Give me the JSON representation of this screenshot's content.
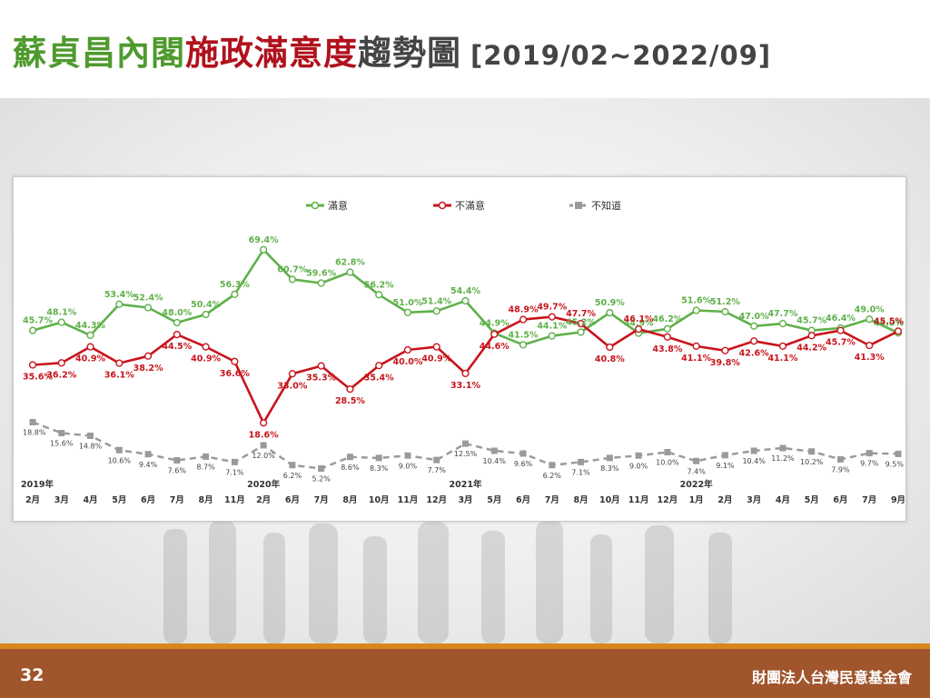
{
  "title": {
    "part1": "蘇貞昌內閣",
    "part2": "施政滿意度",
    "part3": "趨勢圖",
    "period": "[2019/02~2022/09]"
  },
  "footer": {
    "page_number": "32",
    "organization": "財團法人台灣民意基金會"
  },
  "colors": {
    "satisfied": "#5fb04a",
    "dissatisfied": "#c8141c",
    "unknown": "#9a9a9a",
    "footer_bar": "#a0552d",
    "footer_accent": "#d8871f"
  },
  "chart_data": {
    "type": "line",
    "title": "",
    "xlabel": "",
    "ylabel": "",
    "ylim": [
      0,
      80
    ],
    "grid": false,
    "legend_position": "top-center",
    "year_labels": [
      {
        "index": 0,
        "label": "2019年"
      },
      {
        "index": 8,
        "label": "2020年"
      },
      {
        "index": 15,
        "label": "2021年"
      },
      {
        "index": 23,
        "label": "2022年"
      }
    ],
    "categories": [
      "2月",
      "3月",
      "4月",
      "5月",
      "6月",
      "7月",
      "8月",
      "11月",
      "2月",
      "6月",
      "7月",
      "8月",
      "10月",
      "11月",
      "12月",
      "3月",
      "5月",
      "6月",
      "7月",
      "8月",
      "10月",
      "11月",
      "12月",
      "1月",
      "2月",
      "3月",
      "4月",
      "5月",
      "6月",
      "7月",
      "9月"
    ],
    "series": [
      {
        "name": "滿意",
        "values": [
          45.7,
          48.1,
          44.3,
          53.4,
          52.4,
          48.0,
          50.4,
          56.3,
          69.4,
          60.7,
          59.6,
          62.8,
          56.2,
          51.0,
          51.4,
          54.4,
          44.9,
          41.5,
          44.1,
          45.2,
          50.9,
          44.9,
          46.2,
          51.6,
          51.2,
          47.0,
          47.7,
          45.7,
          46.4,
          49.0,
          45.0
        ]
      },
      {
        "name": "不滿意",
        "values": [
          35.6,
          36.2,
          40.9,
          36.1,
          38.2,
          44.5,
          40.9,
          36.6,
          18.6,
          33.0,
          35.3,
          28.5,
          35.4,
          40.0,
          40.9,
          33.1,
          44.6,
          48.9,
          49.7,
          47.7,
          40.8,
          46.1,
          43.8,
          41.1,
          39.8,
          42.6,
          41.1,
          44.2,
          45.7,
          41.3,
          45.5
        ]
      },
      {
        "name": "不知道",
        "values": [
          18.8,
          15.6,
          14.8,
          10.6,
          9.4,
          7.6,
          8.7,
          7.1,
          12.0,
          6.2,
          5.2,
          8.6,
          8.3,
          9.0,
          7.7,
          12.5,
          10.4,
          9.6,
          6.2,
          7.1,
          8.3,
          9.0,
          10.0,
          7.4,
          9.1,
          10.4,
          11.2,
          10.2,
          7.9,
          9.7,
          9.5
        ]
      }
    ]
  }
}
